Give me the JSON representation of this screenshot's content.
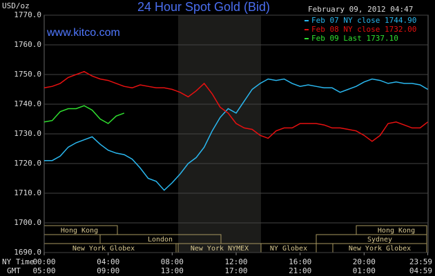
{
  "chart_data": {
    "type": "line",
    "title": "24 Hour Spot Gold (Bid)",
    "unit": "USD/oz",
    "site": "www.kitco.com",
    "timestamp": "February 09, 2012 04:47",
    "x_label": "NY Time",
    "x2_label": "GMT",
    "xlim": [
      0,
      24
    ],
    "xticks": [
      {
        "value": 0,
        "label": "00:00"
      },
      {
        "value": 4,
        "label": "04:00"
      },
      {
        "value": 8,
        "label": "08:00"
      },
      {
        "value": 12,
        "label": "12:00"
      },
      {
        "value": 16,
        "label": "16:00"
      },
      {
        "value": 20,
        "label": "20:00"
      },
      {
        "value": 23.98,
        "label": "23:59"
      }
    ],
    "x2ticks": [
      {
        "value": 0,
        "label": "05:00"
      },
      {
        "value": 4,
        "label": "09:00"
      },
      {
        "value": 8,
        "label": "13:00"
      },
      {
        "value": 12,
        "label": "17:00"
      },
      {
        "value": 16,
        "label": "21:00"
      },
      {
        "value": 20,
        "label": "01:00"
      },
      {
        "value": 23.98,
        "label": "04:59"
      }
    ],
    "ylim": [
      1690,
      1770
    ],
    "yticks": [
      {
        "value": 1690,
        "label": "1690.0"
      },
      {
        "value": 1700,
        "label": "1700.0"
      },
      {
        "value": 1710,
        "label": "1710.0"
      },
      {
        "value": 1720,
        "label": "1720.0"
      },
      {
        "value": 1730,
        "label": "1730.0"
      },
      {
        "value": 1740,
        "label": "1740.0"
      },
      {
        "value": 1750,
        "label": "1750.0"
      },
      {
        "value": 1760,
        "label": "1760.0"
      },
      {
        "value": 1770,
        "label": "1770.0"
      }
    ],
    "grid": true,
    "series": [
      {
        "name": "Feb 07 NY close 1744.90",
        "color": "#2ab8f0",
        "x": [
          0,
          0.5,
          1,
          1.5,
          2,
          2.5,
          3,
          3.5,
          4,
          4.5,
          5,
          5.5,
          6,
          6.5,
          7,
          7.5,
          8,
          8.5,
          9,
          9.5,
          10,
          10.5,
          11,
          11.5,
          12,
          12.5,
          13,
          13.5,
          14,
          14.5,
          15,
          15.5,
          16,
          16.5,
          17,
          17.5,
          18,
          18.5,
          19,
          19.5,
          20,
          20.5,
          21,
          21.5,
          22,
          22.5,
          23,
          23.5,
          23.98
        ],
        "values": [
          1721,
          1721,
          1722.5,
          1725.5,
          1727,
          1728,
          1729,
          1726.5,
          1724.5,
          1723.5,
          1723,
          1721.5,
          1718.5,
          1715,
          1714,
          1711,
          1713.5,
          1716.5,
          1720,
          1722,
          1725.5,
          1731,
          1735.5,
          1738.5,
          1737,
          1741,
          1745,
          1747,
          1748.5,
          1748,
          1748.5,
          1747,
          1746,
          1746.5,
          1746,
          1745.5,
          1745.5,
          1744,
          1745,
          1746,
          1747.5,
          1748.5,
          1748,
          1747,
          1747.5,
          1747,
          1747,
          1746.5,
          1745
        ]
      },
      {
        "name": "Feb 08 NY close 1732.00",
        "color": "#e81010",
        "x": [
          0,
          0.5,
          1,
          1.5,
          2,
          2.5,
          3,
          3.5,
          4,
          4.5,
          5,
          5.5,
          6,
          6.5,
          7,
          7.5,
          8,
          8.5,
          9,
          9.5,
          10,
          10.5,
          11,
          11.5,
          12,
          12.5,
          13,
          13.5,
          14,
          14.5,
          15,
          15.5,
          16,
          16.5,
          17,
          17.5,
          18,
          18.5,
          19,
          19.5,
          20,
          20.5,
          21,
          21.5,
          22,
          22.5,
          23,
          23.5,
          23.98
        ],
        "values": [
          1745.5,
          1746,
          1747,
          1749,
          1750,
          1751,
          1749.5,
          1748.5,
          1748,
          1747,
          1746,
          1745.5,
          1746.5,
          1746,
          1745.5,
          1745.5,
          1745,
          1744,
          1742.5,
          1744.5,
          1747,
          1743.5,
          1739,
          1737,
          1733.5,
          1732,
          1731.5,
          1729.5,
          1728.5,
          1731,
          1732,
          1732,
          1733.5,
          1733.5,
          1733.5,
          1733,
          1732,
          1732,
          1731.5,
          1731,
          1729.5,
          1727.5,
          1729.5,
          1733.5,
          1734,
          1733,
          1732,
          1732,
          1734
        ]
      },
      {
        "name": "Feb 09 Last 1737.10",
        "color": "#30e030",
        "x": [
          0,
          0.5,
          1,
          1.5,
          2,
          2.5,
          3,
          3.5,
          4,
          4.5,
          5
        ],
        "values": [
          1734,
          1734.5,
          1737.5,
          1738.5,
          1738.5,
          1739.5,
          1738,
          1735,
          1733.5,
          1736,
          1737
        ]
      }
    ],
    "markets": [
      [
        "Hong Kong",
        "Hong Kong"
      ],
      [
        "London",
        "Sydney"
      ],
      [
        "New York Globex",
        "New York NYMEX",
        "NY Globex",
        "New York Globex"
      ]
    ]
  }
}
